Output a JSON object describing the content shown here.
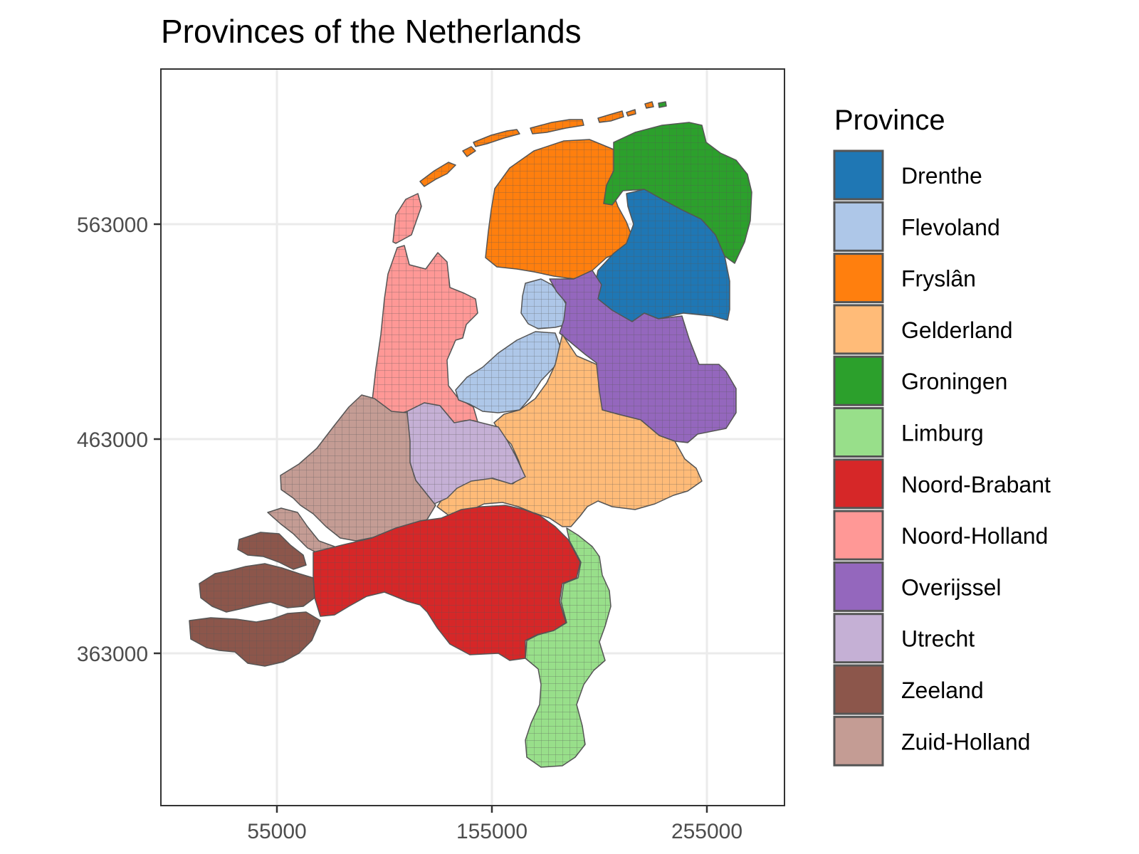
{
  "title": "Provinces of the Netherlands",
  "axes": {
    "x_ticks": [
      "55000",
      "155000",
      "255000"
    ],
    "y_ticks": [
      "563000",
      "463000",
      "363000"
    ]
  },
  "grid": true,
  "legend": {
    "title": "Province",
    "placement": "right",
    "items": [
      {
        "label": "Drenthe",
        "color": "#1f77b4"
      },
      {
        "label": "Flevoland",
        "color": "#aec7e8"
      },
      {
        "label": "Fryslân",
        "color": "#ff7f0e"
      },
      {
        "label": "Gelderland",
        "color": "#ffbb78"
      },
      {
        "label": "Groningen",
        "color": "#2ca02c"
      },
      {
        "label": "Limburg",
        "color": "#98df8a"
      },
      {
        "label": "Noord-Brabant",
        "color": "#d62728"
      },
      {
        "label": "Noord-Holland",
        "color": "#ff9896"
      },
      {
        "label": "Overijssel",
        "color": "#9467bd"
      },
      {
        "label": "Utrecht",
        "color": "#c5b0d5"
      },
      {
        "label": "Zeeland",
        "color": "#8c564b"
      },
      {
        "label": "Zuid-Holland",
        "color": "#c49c94"
      }
    ]
  }
}
